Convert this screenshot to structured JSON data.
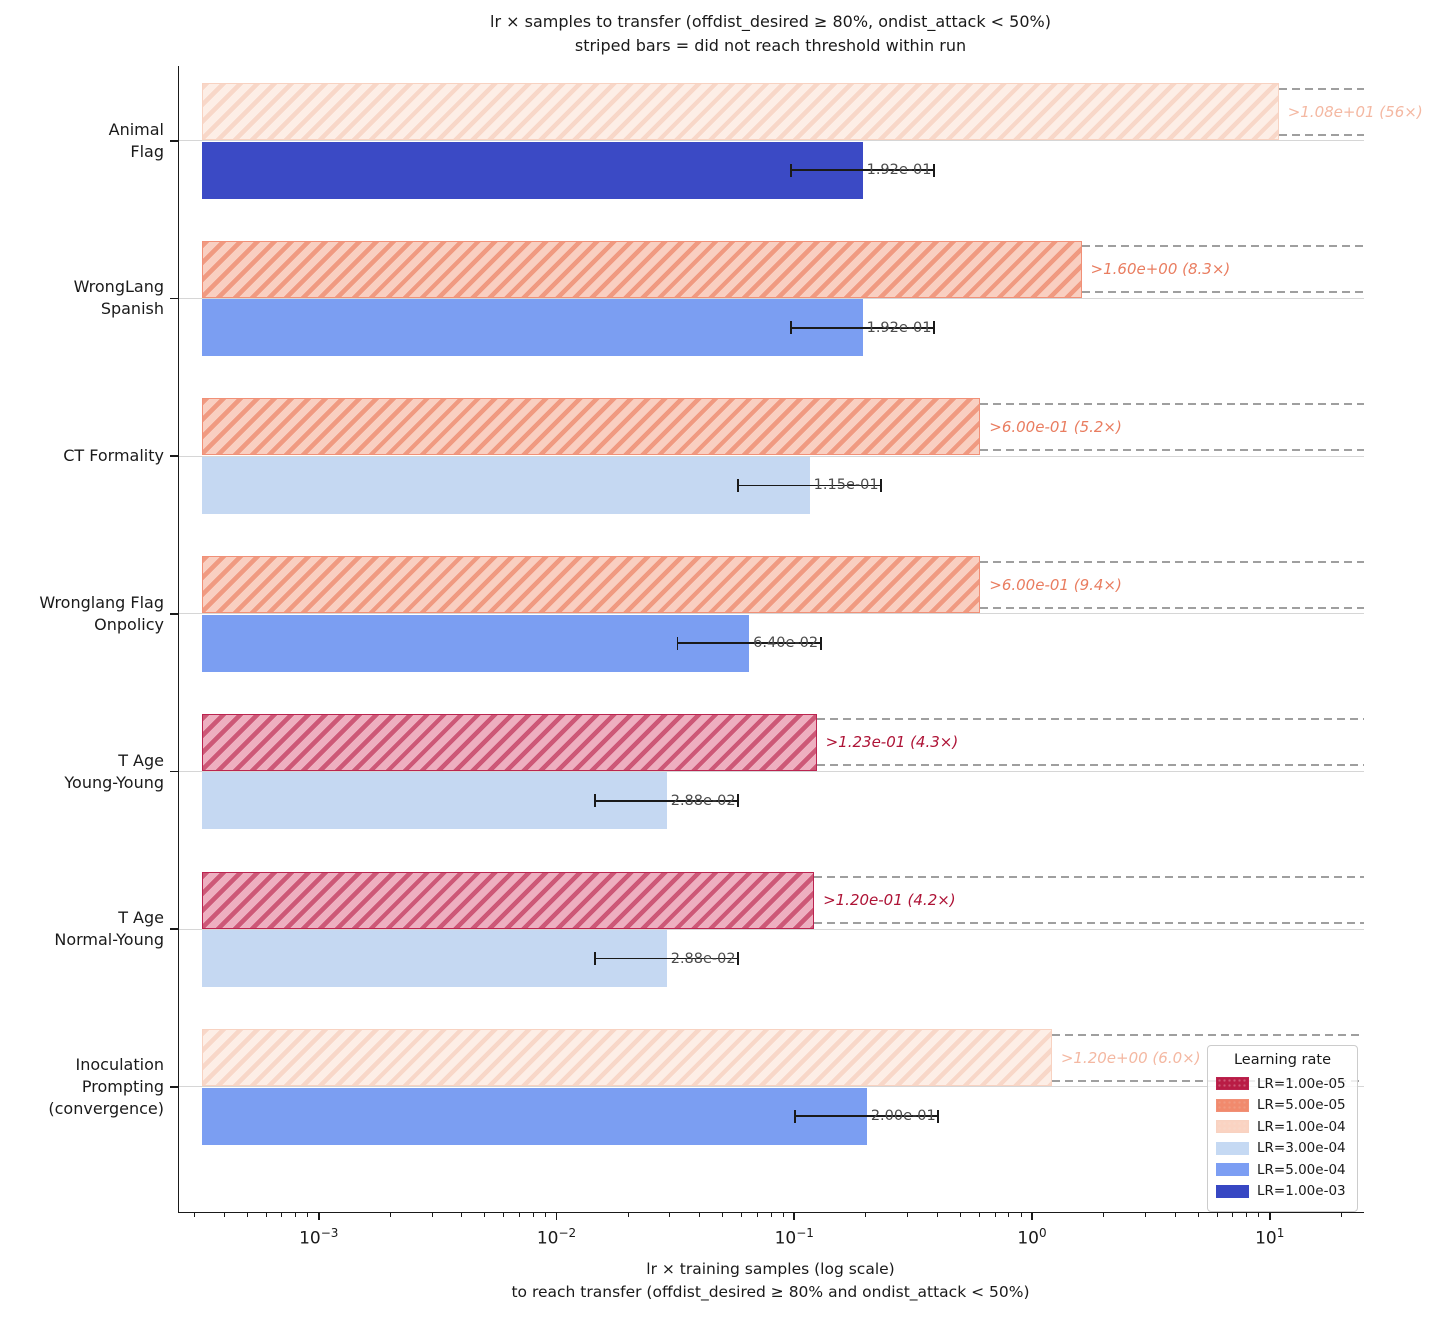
{
  "title": {
    "line1": "lr × samples to transfer (offdist_desired ≥ 80%, ondist_attack < 50%)",
    "line2": "striped bars = did not reach threshold within run"
  },
  "x_axis": {
    "label_line1": "lr × training samples (log scale)",
    "label_line2": "to reach transfer (offdist_desired ≥ 80% and ondist_attack < 50%)",
    "scale": "log",
    "major_ticks": [
      {
        "exponent": -3,
        "base": "10",
        "sup": "−3"
      },
      {
        "exponent": -2,
        "base": "10",
        "sup": "−2"
      },
      {
        "exponent": -1,
        "base": "10",
        "sup": "−1"
      },
      {
        "exponent": 0,
        "base": "10",
        "sup": "0"
      },
      {
        "exponent": 1,
        "base": "10",
        "sup": "1"
      }
    ]
  },
  "chart_data": {
    "type": "bar",
    "orientation": "horizontal",
    "x_scale": "log",
    "bar_base_value": 0.00032,
    "x_range": [
      0.00026,
      24
    ],
    "grid": "y-category-lines",
    "error_factor": 2,
    "groups": [
      {
        "category_lines": [
          "Animal",
          "Flag"
        ],
        "censored": {
          "lr": "1.00e-04",
          "value": 10.8,
          "label": ">1.08e+01 (56×)"
        },
        "reached": {
          "lr": "1.00e-03",
          "value": 0.192,
          "label": "1.92e-01",
          "err_low": 0.096,
          "err_high": 0.384
        }
      },
      {
        "category_lines": [
          "WrongLang",
          "Spanish"
        ],
        "censored": {
          "lr": "5.00e-05",
          "value": 1.6,
          "label": ">1.60e+00 (8.3×)"
        },
        "reached": {
          "lr": "5.00e-04",
          "value": 0.192,
          "label": "1.92e-01",
          "err_low": 0.096,
          "err_high": 0.384
        }
      },
      {
        "category_lines": [
          "CT Formality"
        ],
        "censored": {
          "lr": "5.00e-05",
          "value": 0.6,
          "label": ">6.00e-01 (5.2×)"
        },
        "reached": {
          "lr": "3.00e-04",
          "value": 0.115,
          "label": "1.15e-01",
          "err_low": 0.0575,
          "err_high": 0.23
        }
      },
      {
        "category_lines": [
          "Wronglang Flag",
          "Onpolicy"
        ],
        "censored": {
          "lr": "5.00e-05",
          "value": 0.6,
          "label": ">6.00e-01 (9.4×)"
        },
        "reached": {
          "lr": "5.00e-04",
          "value": 0.064,
          "label": "6.40e-02",
          "err_low": 0.032,
          "err_high": 0.128
        }
      },
      {
        "category_lines": [
          "T Age",
          "Young-Young"
        ],
        "censored": {
          "lr": "1.00e-05",
          "value": 0.123,
          "label": ">1.23e-01 (4.3×)"
        },
        "reached": {
          "lr": "3.00e-04",
          "value": 0.0288,
          "label": "2.88e-02",
          "err_low": 0.0144,
          "err_high": 0.0576
        }
      },
      {
        "category_lines": [
          "T Age",
          "Normal-Young"
        ],
        "censored": {
          "lr": "1.00e-05",
          "value": 0.12,
          "label": ">1.20e-01 (4.2×)"
        },
        "reached": {
          "lr": "3.00e-04",
          "value": 0.0288,
          "label": "2.88e-02",
          "err_low": 0.0144,
          "err_high": 0.0576
        }
      },
      {
        "category_lines": [
          "Inoculation",
          "Prompting",
          "(convergence)"
        ],
        "censored": {
          "lr": "1.00e-04",
          "value": 1.2,
          "label": ">1.20e+00 (6.0×)"
        },
        "reached": {
          "lr": "5.00e-04",
          "value": 0.2,
          "label": "2.00e-01",
          "err_low": 0.1,
          "err_high": 0.4
        }
      }
    ]
  },
  "legend": {
    "title": "Learning rate",
    "entries": [
      {
        "label": "LR=1.00e-05",
        "lr": "1.00e-05",
        "hatched": true
      },
      {
        "label": "LR=5.00e-05",
        "lr": "5.00e-05",
        "hatched": true
      },
      {
        "label": "LR=1.00e-04",
        "lr": "1.00e-04",
        "hatched": true
      },
      {
        "label": "LR=3.00e-04",
        "lr": "3.00e-04",
        "hatched": false
      },
      {
        "label": "LR=5.00e-04",
        "lr": "5.00e-04",
        "hatched": false
      },
      {
        "label": "LR=1.00e-03",
        "lr": "1.00e-03",
        "hatched": false
      }
    ]
  },
  "colors": {
    "1.00e-05": {
      "legend": "#b91c45",
      "fill": "#eeafc0",
      "stripe": "#cd5877",
      "edge": "#bb2450",
      "label_text": "#ae1336"
    },
    "5.00e-05": {
      "legend": "#f18a6d",
      "fill": "#f9cfc1",
      "stripe": "#f09a81",
      "edge": "#f19077",
      "label_text": "#e97d60"
    },
    "1.00e-04": {
      "legend": "#fad3c2",
      "fill": "#fdeee6",
      "stripe": "#f8d7c8",
      "edge": "#f8d2c1",
      "label_text": "#f4b8a2"
    },
    "3.00e-04": {
      "legend": "#c5d9f3",
      "fill": "#c5d8f2"
    },
    "5.00e-04": {
      "legend": "#7c9ef3",
      "fill": "#7b9ef2"
    },
    "1.00e-03": {
      "legend": "#3747c3",
      "fill": "#3b4ac5"
    },
    "dashed_line": "#9f9f9f",
    "grid_line": "#d6d6d6",
    "value_label": "#4b4b4b"
  }
}
